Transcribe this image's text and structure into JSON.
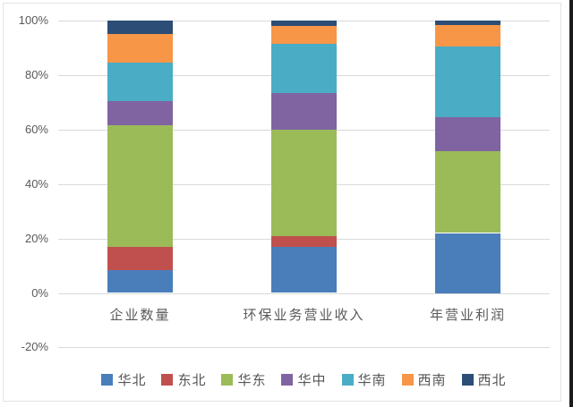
{
  "chart_data": {
    "type": "bar",
    "subtype": "stacked-100-percent-column",
    "title": "",
    "xlabel": "",
    "ylabel": "",
    "categories": [
      "企业数量",
      "环保业务营业收入",
      "年营业利润"
    ],
    "series": [
      {
        "name": "华北",
        "color": "#4A7EBB",
        "values": [
          8.5,
          17,
          22
        ]
      },
      {
        "name": "东北",
        "color": "#C0504D",
        "values": [
          8.5,
          4,
          0
        ]
      },
      {
        "name": "华东",
        "color": "#9BBB59",
        "values": [
          44.5,
          39,
          30
        ]
      },
      {
        "name": "华中",
        "color": "#8064A2",
        "values": [
          9,
          13.5,
          12.5
        ]
      },
      {
        "name": "华南",
        "color": "#4BACC6",
        "values": [
          14,
          18,
          26
        ]
      },
      {
        "name": "西南",
        "color": "#F79646",
        "values": [
          10.5,
          6.5,
          8
        ]
      },
      {
        "name": "西北",
        "color": "#2C4D75",
        "values": [
          5,
          2,
          1.5
        ]
      }
    ],
    "y_axis": {
      "min": -20,
      "max": 100,
      "step": 20,
      "tick_format": "percent",
      "ticks": [
        "100%",
        "80%",
        "60%",
        "40%",
        "20%",
        "0%",
        "-20%"
      ]
    },
    "legend_position": "bottom",
    "grid": true,
    "gridline_color": "#d9d9d9",
    "axis_text_color": "#595959"
  }
}
